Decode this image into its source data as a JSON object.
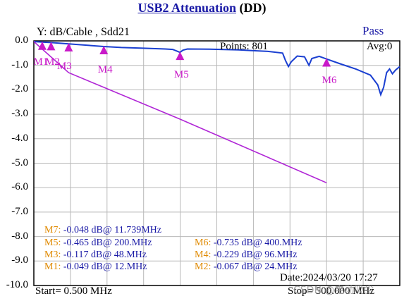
{
  "header": {
    "title_part1": "USB2  Attenuation",
    "title_part2": "(DD)"
  },
  "chart_meta": {
    "y_label": "Y: dB/Cable , Sdd21",
    "status": "Pass",
    "points": "Points: 801",
    "avg": "Avg:0",
    "date": "Date:2024/03/20 17:27",
    "start": "Start= 0.500 MHz",
    "stop": "Stop= 500.000 MHz",
    "watermark": "CSDN @电动吸尘"
  },
  "markers": [
    {
      "label": "M7:",
      "value": "-0.048 dB@ 11.739MHz"
    },
    {
      "label": "M5:",
      "value": "-0.465 dB@ 200.MHz"
    },
    {
      "label": "M6:",
      "value": "-0.735 dB@ 400.MHz"
    },
    {
      "label": "M3:",
      "value": "-0.117 dB@ 48.MHz"
    },
    {
      "label": "M4:",
      "value": "-0.229 dB@ 96.MHz"
    },
    {
      "label": "M1:",
      "value": "-0.049 dB@ 12.MHz"
    },
    {
      "label": "M2:",
      "value": "-0.067 dB@ 24.MHz"
    }
  ],
  "chart_data": {
    "type": "line",
    "title": "USB2  Attenuation (DD)",
    "ylabel": "Y: dB/Cable , Sdd21",
    "xlim": [
      0.5,
      500
    ],
    "ylim": [
      -10,
      0
    ],
    "y_ticks": [
      "0.0",
      "-1.0",
      "-2.0",
      "-3.0",
      "-4.0",
      "-5.0",
      "-6.0",
      "-7.0",
      "-8.0",
      "-9.0",
      "-10.0"
    ],
    "grid": true,
    "series": [
      {
        "color": "#1a3fd1",
        "x": [
          0.5,
          12,
          24,
          48,
          96,
          120,
          150,
          180,
          190,
          196,
          200,
          204,
          210,
          240,
          280,
          300,
          320,
          340,
          344,
          348,
          352,
          360,
          370,
          376,
          380,
          390,
          400,
          420,
          440,
          460,
          470,
          474,
          478,
          482,
          486,
          490,
          494,
          500
        ],
        "y": [
          -0.03,
          -0.05,
          -0.07,
          -0.12,
          -0.23,
          -0.27,
          -0.3,
          -0.33,
          -0.35,
          -0.42,
          -0.47,
          -0.38,
          -0.33,
          -0.34,
          -0.37,
          -0.4,
          -0.43,
          -0.5,
          -0.8,
          -1.05,
          -0.85,
          -0.62,
          -0.65,
          -1.0,
          -0.72,
          -0.63,
          -0.74,
          -0.95,
          -1.15,
          -1.4,
          -1.8,
          -2.2,
          -1.9,
          -1.3,
          -1.15,
          -1.35,
          -1.2,
          -1.05
        ]
      },
      {
        "color": "#b026d6",
        "x": [
          0.5,
          48,
          96,
          200,
          400
        ],
        "y": [
          -0.03,
          -1.3,
          -1.9,
          -3.2,
          -5.8
        ]
      }
    ],
    "marker_points": [
      {
        "name": "M1",
        "x": 12,
        "y": -0.049
      },
      {
        "name": "M2",
        "x": 24,
        "y": -0.067
      },
      {
        "name": "M3",
        "x": 48,
        "y": -0.117
      },
      {
        "name": "M4",
        "x": 96,
        "y": -0.229
      },
      {
        "name": "M5",
        "x": 200,
        "y": -0.465
      },
      {
        "name": "M6",
        "x": 400,
        "y": -0.735
      },
      {
        "name": "M7",
        "x": 11.739,
        "y": -0.048
      }
    ]
  },
  "colors": {
    "trace": "#1a3fd1",
    "limit": "#b026d6",
    "marker": "#c91ac9",
    "grid": "#b8b8b8",
    "title": "#1a1aa6"
  }
}
